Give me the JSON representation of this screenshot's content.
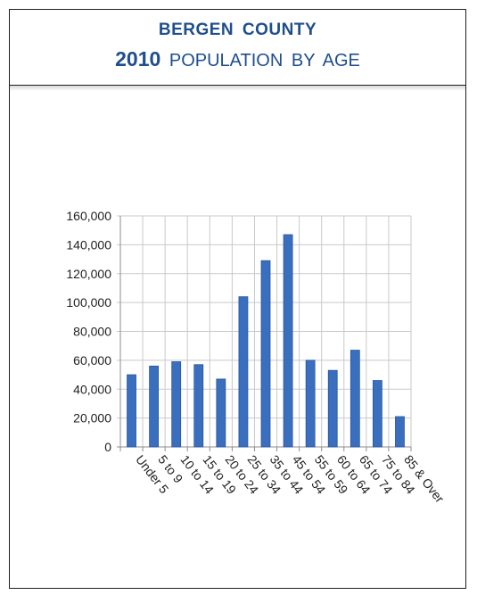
{
  "header": {
    "line1": "BERGEN  COUNTY",
    "year": "2010",
    "subtitle": "POPULATION  BY  AGE"
  },
  "colors": {
    "title": "#1f4e8c",
    "bar": "#3a6fc0",
    "bar_dark": "#2a5598",
    "grid": "#c9c9c9",
    "border": "#1f1f1f"
  },
  "chart_data": {
    "type": "bar",
    "categories": [
      "Under 5",
      "5 to 9",
      "10 to 14",
      "15 to 19",
      "20 to 24",
      "25 to 34",
      "35 to 44",
      "45 to 54",
      "55 to 59",
      "60 to 64",
      "65 to 74",
      "75 to 84",
      "85 & Over"
    ],
    "values": [
      50000,
      56000,
      59000,
      57000,
      47000,
      104000,
      129000,
      147000,
      60000,
      53000,
      67000,
      46000,
      21000
    ],
    "ylim": [
      0,
      160000
    ],
    "ytick_labels": [
      "0",
      "20,000",
      "40,000",
      "60,000",
      "80,000",
      "100,000",
      "120,000",
      "140,000",
      "160,000"
    ],
    "grid": true,
    "legend": "none"
  }
}
